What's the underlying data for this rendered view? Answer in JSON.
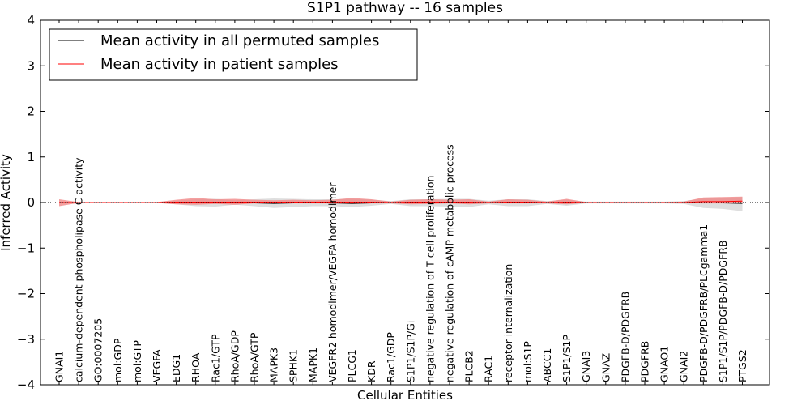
{
  "chart_data": {
    "type": "line",
    "title": "S1P1 pathway -- 16 samples",
    "xlabel": "Cellular Entities",
    "ylabel": "Inferred Activity",
    "ylim": [
      -4,
      4
    ],
    "yticks": [
      -4,
      -3,
      -2,
      -1,
      0,
      1,
      2,
      3,
      4
    ],
    "ytick_labels": [
      "−4",
      "−3",
      "−2",
      "−1",
      "0",
      "1",
      "2",
      "3",
      "4"
    ],
    "categories": [
      "GNAI1",
      "calcium-dependent phospholipase C activity",
      "GO:0007205",
      "mol:GDP",
      "mol:GTP",
      "VEGFA",
      "EDG1",
      "RHOA",
      "Rac1/GTP",
      "RhoA/GDP",
      "RhoA/GTP",
      "MAPK3",
      "SPHK1",
      "MAPK1",
      "VEGFR2 homodimer/VEGFA homodimer",
      "PLCG1",
      "KDR",
      "Rac1/GDP",
      "S1P1/S1P/Gi",
      "negative regulation of T cell proliferation",
      "negative regulation of cAMP metabolic process",
      "PLCB2",
      "RAC1",
      "receptor internalization",
      "mol:S1P",
      "ABCC1",
      "S1P1/S1P",
      "GNAI3",
      "GNAZ",
      "PDGFB-D/PDGFRB",
      "PDGFRB",
      "GNAO1",
      "GNAI2",
      "PDGFB-D/PDGFRB/PLCgamma1",
      "S1P1/S1P/PDGFB-D/PDGFRB",
      "PTGS2"
    ],
    "legend": {
      "position": "top-left"
    },
    "series": [
      {
        "name": "Mean activity in all permuted samples",
        "color": "#000000",
        "band_color": "#cccccc",
        "values": [
          0,
          0,
          0,
          0,
          0,
          0,
          0,
          -0.01,
          -0.01,
          0,
          -0.01,
          -0.02,
          -0.01,
          -0.01,
          -0.01,
          -0.02,
          -0.01,
          0,
          -0.01,
          -0.01,
          -0.01,
          -0.01,
          0,
          -0.01,
          -0.01,
          0,
          -0.01,
          0,
          0,
          0,
          0,
          0,
          0,
          -0.01,
          -0.01,
          -0.02
        ],
        "band_low": [
          -0.02,
          -0.01,
          -0.01,
          -0.01,
          -0.01,
          -0.01,
          -0.04,
          -0.08,
          -0.09,
          -0.05,
          -0.08,
          -0.12,
          -0.1,
          -0.08,
          -0.08,
          -0.1,
          -0.07,
          -0.03,
          -0.08,
          -0.08,
          -0.09,
          -0.1,
          -0.04,
          -0.08,
          -0.08,
          -0.03,
          -0.07,
          -0.02,
          -0.02,
          -0.02,
          -0.02,
          -0.02,
          -0.03,
          -0.12,
          -0.14,
          -0.19
        ],
        "band_high": [
          0.02,
          0.01,
          0.01,
          0.01,
          0.01,
          0.01,
          0.04,
          0.07,
          0.08,
          0.05,
          0.07,
          0.09,
          0.08,
          0.07,
          0.07,
          0.08,
          0.06,
          0.03,
          0.07,
          0.07,
          0.08,
          0.08,
          0.04,
          0.07,
          0.07,
          0.03,
          0.06,
          0.02,
          0.02,
          0.02,
          0.02,
          0.02,
          0.03,
          0.09,
          0.1,
          0.12
        ]
      },
      {
        "name": "Mean activity in patient samples",
        "color": "#ff0000",
        "band_color": "#f08080",
        "values": [
          0,
          0,
          0,
          0,
          0,
          0,
          0.01,
          0.01,
          0.01,
          0.01,
          0.01,
          0.01,
          0.01,
          0.01,
          0.01,
          0.01,
          0.01,
          0,
          0.01,
          0.01,
          0.01,
          0.01,
          0,
          0.01,
          0.01,
          0,
          0.01,
          0,
          0,
          0,
          0,
          0,
          0,
          0.02,
          0.02,
          0.03
        ],
        "band_low": [
          -0.08,
          -0.01,
          -0.01,
          -0.01,
          -0.01,
          -0.01,
          -0.04,
          -0.05,
          -0.03,
          -0.05,
          -0.02,
          -0.02,
          -0.02,
          -0.02,
          -0.02,
          -0.03,
          -0.02,
          -0.02,
          -0.04,
          -0.03,
          -0.02,
          -0.04,
          -0.02,
          -0.02,
          -0.02,
          -0.02,
          -0.04,
          -0.01,
          -0.01,
          -0.01,
          -0.01,
          -0.01,
          -0.01,
          -0.02,
          -0.02,
          -0.02
        ],
        "band_high": [
          0.07,
          0.01,
          0.01,
          0.01,
          0.01,
          0.01,
          0.06,
          0.1,
          0.07,
          0.08,
          0.06,
          0.05,
          0.06,
          0.05,
          0.06,
          0.1,
          0.07,
          0.02,
          0.06,
          0.07,
          0.06,
          0.07,
          0.02,
          0.07,
          0.06,
          0.02,
          0.08,
          0.01,
          0.01,
          0.01,
          0.01,
          0.01,
          0.02,
          0.11,
          0.12,
          0.13
        ]
      }
    ]
  }
}
